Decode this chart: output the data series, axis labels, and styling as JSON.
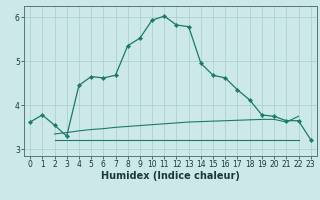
{
  "xlabel": "Humidex (Indice chaleur)",
  "xlim": [
    -0.5,
    23.5
  ],
  "ylim": [
    2.85,
    6.25
  ],
  "background_color": "#cce8e8",
  "grid_color": "#aacccc",
  "line_color": "#1a7a6a",
  "line1_x": [
    0,
    1,
    2,
    3,
    4,
    5,
    6,
    7,
    8,
    9,
    10,
    11,
    12,
    13,
    14,
    15,
    16,
    17,
    18,
    19,
    20,
    21,
    22,
    23
  ],
  "line1_y": [
    3.62,
    3.78,
    3.55,
    3.3,
    4.45,
    4.65,
    4.62,
    4.68,
    5.35,
    5.52,
    5.93,
    6.02,
    5.82,
    5.78,
    4.95,
    4.68,
    4.62,
    4.35,
    4.12,
    3.78,
    3.75,
    3.65,
    3.65,
    3.22
  ],
  "line2_x": [
    2,
    22
  ],
  "line2_y": [
    3.22,
    3.22
  ],
  "line3_x": [
    2,
    3,
    4,
    5,
    6,
    7,
    8,
    9,
    10,
    11,
    12,
    13,
    14,
    15,
    16,
    17,
    18,
    19,
    20,
    21,
    22
  ],
  "line3_y": [
    3.35,
    3.38,
    3.42,
    3.45,
    3.47,
    3.5,
    3.52,
    3.54,
    3.56,
    3.58,
    3.6,
    3.62,
    3.63,
    3.64,
    3.65,
    3.66,
    3.67,
    3.68,
    3.68,
    3.62,
    3.75
  ],
  "xticks": [
    0,
    1,
    2,
    3,
    4,
    5,
    6,
    7,
    8,
    9,
    10,
    11,
    12,
    13,
    14,
    15,
    16,
    17,
    18,
    19,
    20,
    21,
    22,
    23
  ],
  "yticks": [
    3,
    4,
    5,
    6
  ],
  "xlabel_fontsize": 7,
  "tick_fontsize": 5.5
}
